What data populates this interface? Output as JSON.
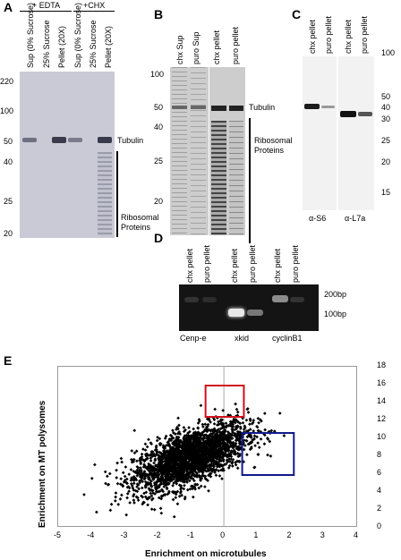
{
  "panels": {
    "A": {
      "label": "A",
      "treatments": [
        "+ EDTA",
        "+CHX"
      ],
      "lanes": [
        "Sup (0% Sucrose)",
        "25% Sucrose",
        "Pellet (20X)",
        "Sup (0% Sucrose)",
        "25% Sucrose",
        "Pellet (20X)"
      ],
      "markers": [
        "220",
        "100",
        "50",
        "40",
        "25",
        "20"
      ],
      "band_label": "Tubulin",
      "bracket_label_1": "Ribosomal",
      "bracket_label_2": "Proteins"
    },
    "B": {
      "label": "B",
      "lanes": [
        "chx Sup",
        "puro Sup",
        "chx pellet",
        "puro pellet"
      ],
      "markers": [
        "100",
        "50",
        "40",
        "25",
        "20"
      ],
      "band_label": "Tubulin",
      "bracket_label_1": "Ribosomal",
      "bracket_label_2": "Proteins"
    },
    "C": {
      "label": "C",
      "lanes": [
        "chx pellet",
        "puro pellet",
        "chx pellet",
        "puro pellet"
      ],
      "markers": [
        "100",
        "50",
        "40",
        "30",
        "25",
        "20",
        "15"
      ],
      "antibodies": [
        "α-S6",
        "α-L7a"
      ]
    },
    "D": {
      "label": "D",
      "lanes": [
        "chx pellet",
        "puro pellet",
        "chx pellet",
        "puro pellet",
        "chx pellet",
        "puro pellet"
      ],
      "size_markers": [
        "200bp",
        "100bp"
      ],
      "genes": [
        "Cenp-e",
        "xkid",
        "cyclinB1"
      ]
    },
    "E": {
      "label": "E"
    }
  },
  "chart_data": {
    "type": "scatter",
    "xlabel": "Enrichment on microtubules",
    "ylabel": "Enrichment on MT polysomes",
    "xlim": [
      -5,
      4
    ],
    "ylim": [
      0,
      18
    ],
    "xticks": [
      "-5",
      "-4",
      "-3",
      "-2",
      "-1",
      "0",
      "1",
      "2",
      "3",
      "4"
    ],
    "yticks": [
      "0",
      "2",
      "4",
      "6",
      "8",
      "10",
      "12",
      "14",
      "16",
      "18"
    ],
    "point_color": "#000000",
    "cloud": {
      "center": [
        -1.0,
        7.8
      ],
      "sd": [
        0.85,
        1.9
      ],
      "correlation": 0.62,
      "n_points": 2600
    },
    "highlight_boxes": [
      {
        "color": "#d0101a",
        "x": [
          -0.55,
          0.6
        ],
        "y": [
          12.3,
          15.8
        ]
      },
      {
        "color": "#101a8c",
        "x": [
          0.55,
          2.1
        ],
        "y": [
          5.8,
          10.5
        ]
      }
    ]
  }
}
